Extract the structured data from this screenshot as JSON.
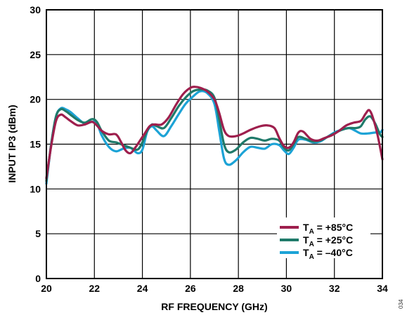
{
  "figure_id": "034",
  "chart_data": {
    "type": "line",
    "title": "",
    "xlabel": "RF FREQUENCY (GHz)",
    "ylabel": "INPUT IP3 (dBm)",
    "xlim": [
      20,
      34
    ],
    "ylim": [
      0,
      30
    ],
    "xticks": [
      20,
      22,
      24,
      26,
      28,
      30,
      32,
      34
    ],
    "yticks": [
      0,
      5,
      10,
      15,
      20,
      25,
      30
    ],
    "grid": true,
    "legend_position": "bottom-right",
    "series": [
      {
        "name_main": "T",
        "name_sub": "A",
        "name_rest": " = +85°C",
        "color": "#9e1f4d",
        "points": [
          [
            20,
            11.2
          ],
          [
            20.2,
            14.8
          ],
          [
            20.4,
            17.6
          ],
          [
            20.6,
            18.3
          ],
          [
            20.8,
            18.0
          ],
          [
            21,
            17.6
          ],
          [
            21.3,
            17.1
          ],
          [
            21.6,
            17.2
          ],
          [
            21.9,
            17.5
          ],
          [
            22.1,
            17.1
          ],
          [
            22.3,
            16.5
          ],
          [
            22.6,
            16.1
          ],
          [
            22.9,
            16.1
          ],
          [
            23.1,
            15.3
          ],
          [
            23.3,
            14.3
          ],
          [
            23.5,
            14.0
          ],
          [
            23.7,
            14.6
          ],
          [
            23.9,
            15.4
          ],
          [
            24.1,
            16.2
          ],
          [
            24.3,
            17.0
          ],
          [
            24.5,
            17.2
          ],
          [
            24.8,
            17.2
          ],
          [
            25.1,
            18.0
          ],
          [
            25.4,
            19.4
          ],
          [
            25.7,
            20.6
          ],
          [
            26.0,
            21.3
          ],
          [
            26.2,
            21.4
          ],
          [
            26.4,
            21.3
          ],
          [
            26.7,
            20.9
          ],
          [
            27.0,
            20.0
          ],
          [
            27.2,
            18.5
          ],
          [
            27.4,
            16.6
          ],
          [
            27.6,
            15.9
          ],
          [
            27.9,
            15.9
          ],
          [
            28.2,
            16.2
          ],
          [
            28.5,
            16.6
          ],
          [
            28.9,
            17.0
          ],
          [
            29.2,
            17.1
          ],
          [
            29.5,
            16.8
          ],
          [
            29.7,
            15.7
          ],
          [
            29.9,
            14.8
          ],
          [
            30.1,
            14.6
          ],
          [
            30.3,
            15.2
          ],
          [
            30.5,
            16.3
          ],
          [
            30.7,
            16.4
          ],
          [
            31.0,
            15.6
          ],
          [
            31.3,
            15.4
          ],
          [
            31.6,
            15.7
          ],
          [
            31.9,
            16.0
          ],
          [
            32.2,
            16.5
          ],
          [
            32.5,
            17.1
          ],
          [
            32.8,
            17.4
          ],
          [
            33.1,
            17.6
          ],
          [
            33.3,
            18.4
          ],
          [
            33.45,
            18.8
          ],
          [
            33.6,
            18.0
          ],
          [
            33.8,
            16.0
          ],
          [
            34,
            13.3
          ]
        ]
      },
      {
        "name_main": "T",
        "name_sub": "A",
        "name_rest": " = +25°C",
        "color": "#1f7a6a",
        "points": [
          [
            20,
            10.9
          ],
          [
            20.2,
            15.0
          ],
          [
            20.4,
            18.1
          ],
          [
            20.6,
            18.9
          ],
          [
            20.8,
            18.7
          ],
          [
            21,
            18.3
          ],
          [
            21.3,
            17.7
          ],
          [
            21.6,
            17.4
          ],
          [
            21.9,
            17.8
          ],
          [
            22.1,
            17.5
          ],
          [
            22.3,
            16.5
          ],
          [
            22.6,
            15.4
          ],
          [
            22.9,
            15.2
          ],
          [
            23.2,
            14.9
          ],
          [
            23.5,
            14.6
          ],
          [
            23.8,
            14.4
          ],
          [
            24.0,
            15.2
          ],
          [
            24.2,
            16.5
          ],
          [
            24.4,
            17.2
          ],
          [
            24.6,
            17.0
          ],
          [
            24.9,
            16.8
          ],
          [
            25.2,
            17.9
          ],
          [
            25.5,
            19.2
          ],
          [
            25.8,
            20.2
          ],
          [
            26.1,
            20.9
          ],
          [
            26.4,
            21.1
          ],
          [
            26.7,
            21.0
          ],
          [
            27.0,
            20.2
          ],
          [
            27.2,
            17.8
          ],
          [
            27.4,
            15.0
          ],
          [
            27.6,
            14.1
          ],
          [
            27.9,
            14.4
          ],
          [
            28.2,
            15.2
          ],
          [
            28.5,
            15.7
          ],
          [
            28.8,
            15.6
          ],
          [
            29.1,
            15.4
          ],
          [
            29.4,
            15.6
          ],
          [
            29.7,
            15.4
          ],
          [
            29.9,
            14.6
          ],
          [
            30.1,
            14.3
          ],
          [
            30.3,
            15.0
          ],
          [
            30.5,
            15.8
          ],
          [
            30.8,
            15.6
          ],
          [
            31.1,
            15.3
          ],
          [
            31.4,
            15.4
          ],
          [
            31.7,
            15.8
          ],
          [
            32.0,
            16.2
          ],
          [
            32.3,
            16.6
          ],
          [
            32.6,
            16.8
          ],
          [
            32.9,
            16.8
          ],
          [
            33.1,
            17.0
          ],
          [
            33.3,
            17.8
          ],
          [
            33.5,
            18.1
          ],
          [
            33.7,
            17.3
          ],
          [
            33.9,
            16.1
          ],
          [
            34,
            15.8
          ]
        ]
      },
      {
        "name_main": "T",
        "name_sub": "A",
        "name_rest": " = –40°C",
        "color": "#1ca3d6",
        "points": [
          [
            20,
            10.6
          ],
          [
            20.2,
            15.0
          ],
          [
            20.4,
            18.1
          ],
          [
            20.6,
            19.0
          ],
          [
            20.8,
            18.9
          ],
          [
            21,
            18.6
          ],
          [
            21.3,
            17.9
          ],
          [
            21.6,
            17.3
          ],
          [
            21.9,
            17.5
          ],
          [
            22.1,
            17.4
          ],
          [
            22.3,
            16.0
          ],
          [
            22.6,
            14.7
          ],
          [
            22.9,
            14.2
          ],
          [
            23.2,
            14.5
          ],
          [
            23.5,
            14.6
          ],
          [
            23.8,
            14.0
          ],
          [
            24.0,
            14.4
          ],
          [
            24.2,
            16.4
          ],
          [
            24.4,
            17.0
          ],
          [
            24.6,
            16.5
          ],
          [
            24.9,
            15.9
          ],
          [
            25.2,
            17.0
          ],
          [
            25.5,
            18.3
          ],
          [
            25.8,
            19.5
          ],
          [
            26.1,
            20.3
          ],
          [
            26.4,
            20.9
          ],
          [
            26.7,
            20.7
          ],
          [
            27.0,
            19.5
          ],
          [
            27.2,
            16.5
          ],
          [
            27.4,
            13.4
          ],
          [
            27.6,
            12.7
          ],
          [
            27.9,
            13.2
          ],
          [
            28.2,
            14.1
          ],
          [
            28.5,
            14.7
          ],
          [
            28.8,
            14.6
          ],
          [
            29.1,
            14.5
          ],
          [
            29.4,
            15.0
          ],
          [
            29.7,
            14.9
          ],
          [
            29.9,
            14.3
          ],
          [
            30.1,
            13.9
          ],
          [
            30.3,
            14.6
          ],
          [
            30.5,
            15.5
          ],
          [
            30.8,
            15.5
          ],
          [
            31.1,
            15.2
          ],
          [
            31.4,
            15.3
          ],
          [
            31.7,
            15.8
          ],
          [
            32.0,
            16.3
          ],
          [
            32.3,
            16.6
          ],
          [
            32.6,
            16.8
          ],
          [
            32.8,
            16.6
          ],
          [
            33.1,
            16.2
          ],
          [
            33.4,
            16.2
          ],
          [
            33.7,
            16.3
          ],
          [
            33.9,
            16.3
          ],
          [
            34,
            16.6
          ]
        ]
      }
    ]
  }
}
